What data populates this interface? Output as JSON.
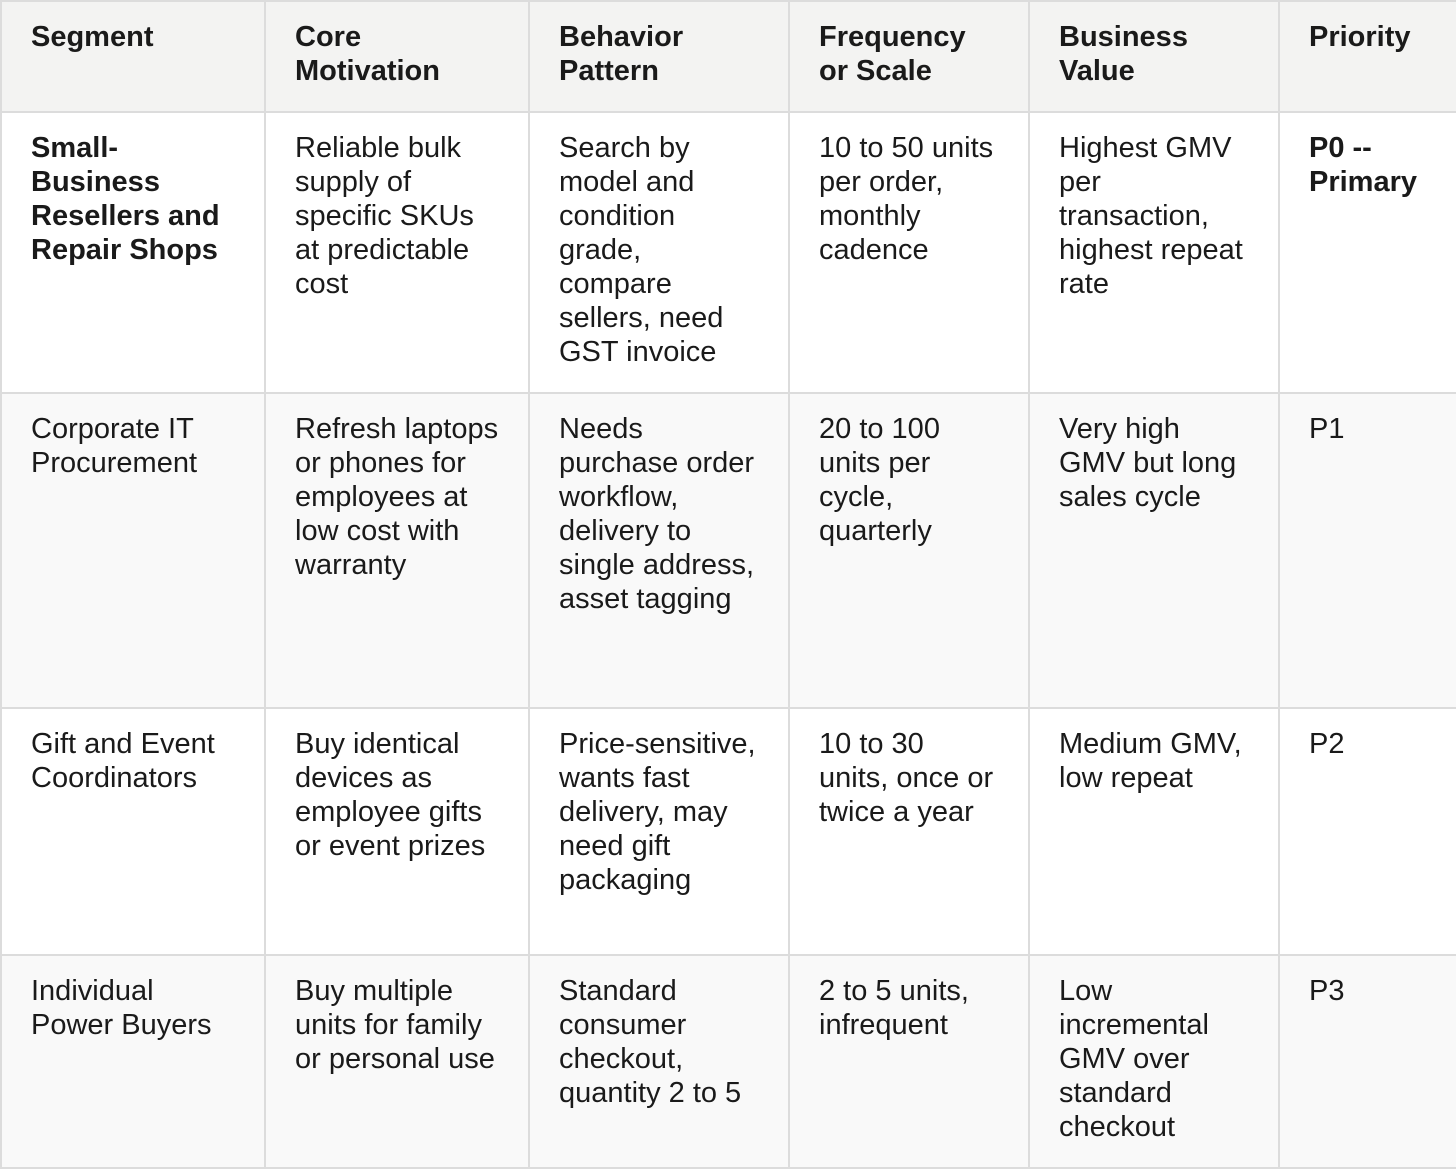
{
  "table": {
    "headers": [
      "Segment",
      "Core Motivation",
      "Behavior Pattern",
      "Frequency or Scale",
      "Business Value",
      "Priority"
    ],
    "rows": [
      [
        "Small-Business Resellers and Repair Shops",
        "Reliable bulk supply of specific SKUs at predictable cost",
        "Search by model and condition grade, compare sellers, need GST invoice",
        "10 to 50 units per order, monthly cadence",
        "Highest GMV per transaction, highest repeat rate",
        "P0 -- Primary"
      ],
      [
        "Corporate IT Procurement",
        "Refresh laptops or phones for employees at low cost with warranty",
        "Needs purchase order workflow, delivery to single address, asset tagging",
        "20 to 100 units per cycle, quarterly",
        "Very high GMV but long sales cycle",
        "P1"
      ],
      [
        "Gift and Event Coordinators",
        "Buy identical devices as employee gifts or event prizes",
        "Price-sensitive, wants fast delivery, may need gift packaging",
        "10 to 30 units, once or twice a year",
        "Medium GMV, low repeat",
        "P2"
      ],
      [
        "Individual Power Buyers",
        "Buy multiple units for family or personal use",
        "Standard consumer checkout, quantity 2 to 5",
        "2 to 5 units, infrequent",
        "Low incremental GMV over standard checkout",
        "P3"
      ]
    ]
  }
}
